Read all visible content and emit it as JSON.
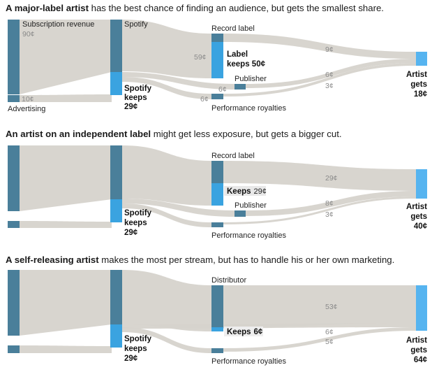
{
  "panels": [
    {
      "headline_bold": "A major-label artist",
      "headline_rest": " has the best chance of finding an audience, but gets the smallest share.",
      "subscription_label": "Subscription revenue",
      "subscription_value": "90¢",
      "advertising_value": "10¢",
      "advertising_label": "Advertising",
      "spotify_label": "Spotify",
      "spotify_keeps": [
        "Spotify",
        "keeps",
        "29¢"
      ],
      "middle_label": "Record label",
      "middle_keeps": [
        "Label",
        "keeps 50¢"
      ],
      "middle_in_value": "59¢",
      "publisher_label": "Publisher",
      "publisher_value": "6¢",
      "royalties_label": "Performance royalties",
      "royalties_value": "6¢",
      "to_artist_values": [
        "9¢",
        "6¢",
        "3¢"
      ],
      "artist": [
        "Artist",
        "gets",
        "18¢"
      ]
    },
    {
      "headline_bold": "An artist on an independent label",
      "headline_rest": " might get less exposure, but gets a bigger cut.",
      "spotify_keeps": [
        "Spotify",
        "keeps",
        "29¢"
      ],
      "middle_label": "Record label",
      "middle_keeps_bold": "Keeps",
      "middle_keeps_value": "29¢",
      "publisher_label": "Publisher",
      "royalties_label": "Performance royalties",
      "to_artist_values": [
        "29¢",
        "8¢",
        "3¢"
      ],
      "artist": [
        "Artist",
        "gets",
        "40¢"
      ]
    },
    {
      "headline_bold": "A self-releasing artist",
      "headline_rest": " makes the most per stream, but has to handle his or her own marketing.",
      "spotify_keeps": [
        "Spotify",
        "keeps",
        "29¢"
      ],
      "middle_label": "Distributor",
      "middle_keeps_bold": "Keeps",
      "middle_keeps_value": "6¢",
      "royalties_label": "Performance royalties",
      "to_artist_values": [
        "53¢",
        "6¢",
        "5¢"
      ],
      "artist": [
        "Artist",
        "gets",
        "64¢"
      ]
    }
  ],
  "colors": {
    "flow": "#d6d3cc",
    "node_dark": "#4a7f9a",
    "node_light": "#3aa3e0",
    "artist": "#56b4f0"
  }
}
